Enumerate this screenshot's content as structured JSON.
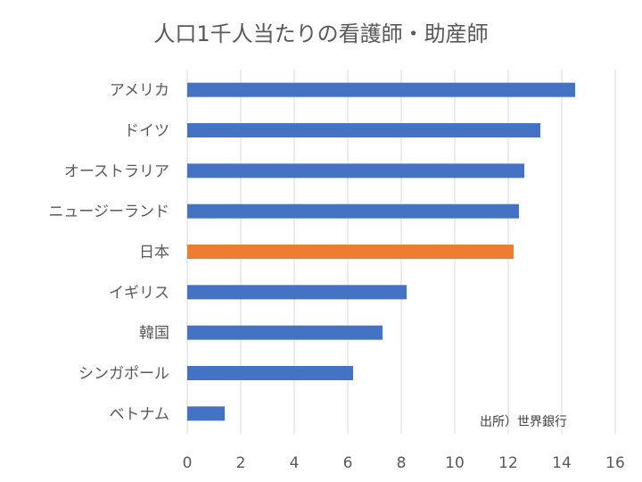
{
  "chart_data": {
    "type": "bar",
    "orientation": "horizontal",
    "title": "人口1千人当たりの看護師・助産師",
    "categories": [
      "アメリカ",
      "ドイツ",
      "オーストラリア",
      "ニュージーランド",
      "日本",
      "イギリス",
      "韓国",
      "シンガポール",
      "ベトナム"
    ],
    "values": [
      14.5,
      13.2,
      12.6,
      12.4,
      12.2,
      8.2,
      7.3,
      6.2,
      1.4
    ],
    "colors": [
      "#4472C4",
      "#4472C4",
      "#4472C4",
      "#4472C4",
      "#ED7D31",
      "#4472C4",
      "#4472C4",
      "#4472C4",
      "#4472C4"
    ],
    "xlim": [
      0,
      16
    ],
    "xticks": [
      "0",
      "2",
      "4",
      "6",
      "8",
      "10",
      "12",
      "14",
      "16"
    ],
    "grid": true,
    "annotation": "出所）世界銀行"
  }
}
